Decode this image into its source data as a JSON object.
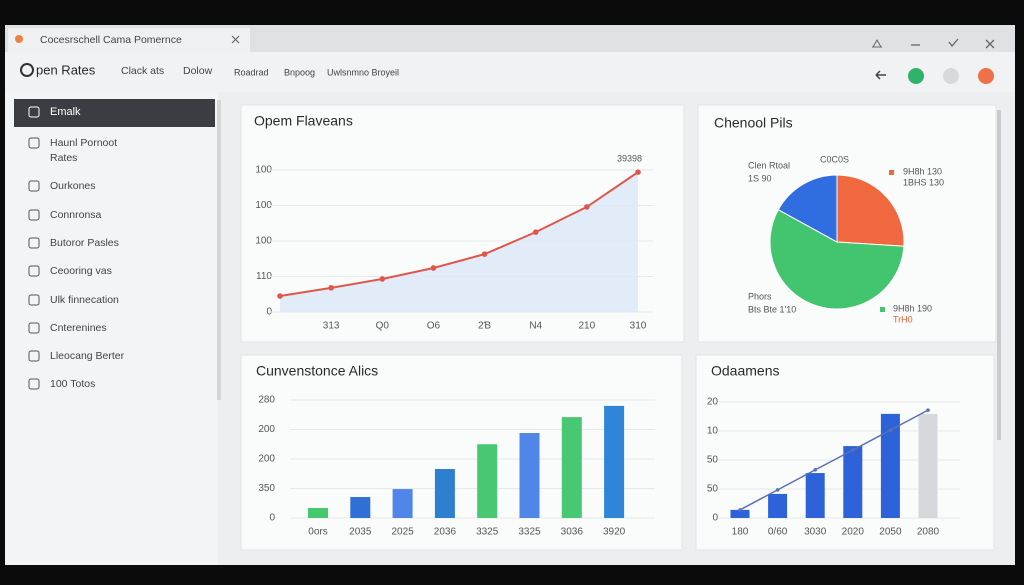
{
  "window": {
    "tab_title": "Cocesrschell Cama Pomernce"
  },
  "toolbar": {
    "title": "pen Rates",
    "menu": [
      "Clack ats",
      "Dolow"
    ],
    "links": [
      "Roadrad",
      "Bnpoog",
      "Uwlsnmno Broyeil"
    ]
  },
  "sidebar": {
    "items": [
      [
        "Emalk"
      ],
      [
        "Haunl Pornoot",
        "Rates"
      ],
      [
        "Ourkones"
      ],
      [
        "Connronsa"
      ],
      [
        "Butoror Pasles"
      ],
      [
        "Ceooring vas"
      ],
      [
        "Ulk finnecation"
      ],
      [
        "Cnterenines"
      ],
      [
        "Lleocang Berter"
      ],
      [
        "100 Totos"
      ]
    ]
  },
  "chart_data": [
    {
      "type": "line",
      "title": "Opem Flaveans",
      "categories": [
        null,
        "313",
        "Q0",
        "O6",
        "2Ɓ",
        "N4",
        "210",
        "310"
      ],
      "values": [
        0.45,
        0.68,
        0.93,
        1.24,
        1.63,
        2.25,
        2.96,
        3.94
      ],
      "color": "#e0574a",
      "area_color": "#dce7f8",
      "ylim": [
        0,
        4
      ],
      "yticks": [
        0,
        {
          "value": 1,
          "label": "110"
        },
        {
          "value": 2,
          "label": "100"
        },
        {
          "value": 3,
          "label": "100"
        },
        {
          "value": 4,
          "label": "100"
        }
      ],
      "grid": true,
      "annotations": [
        "39398"
      ]
    },
    {
      "type": "pie",
      "title": "Chenool Pils",
      "values": [
        26,
        57,
        17
      ],
      "colors": [
        "#f0683f",
        "#43c46f",
        "#2f6de0"
      ],
      "annotations": [
        "Clen Rtoal",
        "1S 90",
        "C0C0S",
        "9H8h 130",
        "1BHS 130",
        "Phors",
        "Bts Bte 1'10",
        "9H8h 190",
        "TrH0"
      ]
    },
    {
      "type": "bar",
      "title": "Cunvenstonce Alics",
      "categories": [
        "0ors",
        "2035",
        "2025",
        "2036",
        "3325",
        "3325",
        "3036",
        "3920"
      ],
      "values": [
        0.34,
        0.71,
        0.98,
        1.66,
        2.5,
        2.88,
        3.42,
        3.8
      ],
      "colors": [
        "#45c86e",
        "#2f6fd6",
        "#4f86e8",
        "#2f7fd0",
        "#48c872",
        "#4f86e8",
        "#48c872",
        "#2f86d8"
      ],
      "ylim": [
        0,
        4
      ],
      "yticks": [
        0,
        {
          "value": 1,
          "label": "350"
        },
        {
          "value": 2,
          "label": "200"
        },
        {
          "value": 3,
          "label": "200"
        },
        {
          "value": 4,
          "label": "280"
        }
      ],
      "grid": true
    },
    {
      "type": "bar",
      "title": "Odaamens",
      "categories": [
        "180",
        "0/60",
        "3030",
        "2020",
        "2050",
        "2080"
      ],
      "series": [
        {
          "type": "bar",
          "values": [
            0.28,
            0.83,
            1.55,
            2.48,
            3.59,
            3.59
          ],
          "colors": [
            "#2d62d9",
            "#2d62d9",
            "#2d62d9",
            "#2d62d9",
            "#2d62d9",
            "#d6d8db"
          ]
        },
        {
          "type": "line",
          "values": [
            0.28,
            0.97,
            1.66,
            2.34,
            3.03,
            3.72
          ],
          "color": "#5a6fb5"
        }
      ],
      "ylim": [
        0,
        4
      ],
      "yticks": [
        0,
        {
          "value": 1,
          "label": "50"
        },
        {
          "value": 2,
          "label": "50"
        },
        {
          "value": 3,
          "label": "10"
        },
        {
          "value": 4,
          "label": "20"
        }
      ],
      "grid": true
    }
  ]
}
